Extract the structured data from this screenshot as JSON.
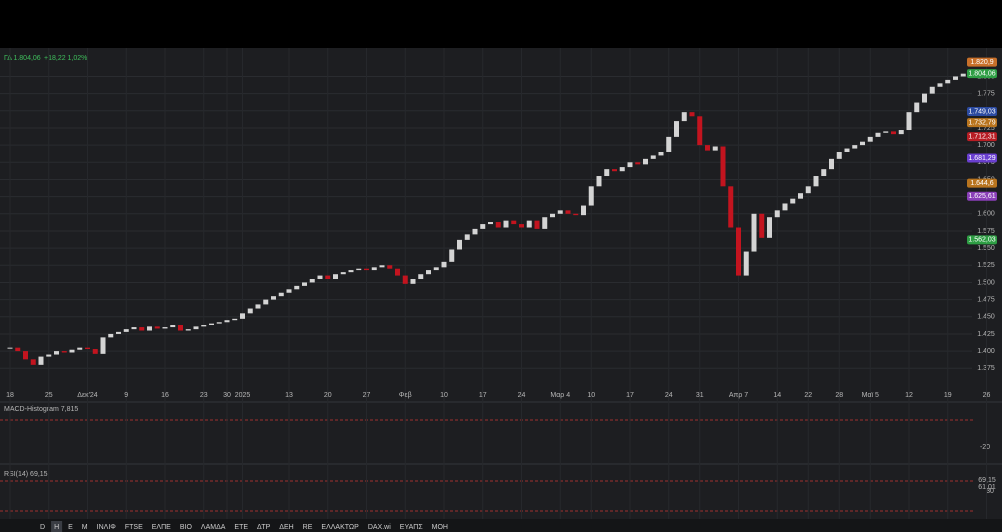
{
  "chart_data": {
    "type": "candlestick",
    "header": {
      "symbol": "ΓΔ 1.804,06",
      "change": "+18,22 1,02%"
    },
    "categories": [
      "18",
      null,
      null,
      null,
      null,
      "25",
      null,
      null,
      null,
      null,
      "Δεκ'24",
      null,
      null,
      null,
      null,
      "9",
      null,
      null,
      null,
      null,
      "16",
      null,
      null,
      null,
      null,
      "23",
      null,
      null,
      "30",
      null,
      "2025",
      null,
      null,
      null,
      null,
      null,
      "13",
      null,
      null,
      null,
      null,
      "20",
      null,
      null,
      null,
      null,
      "27",
      null,
      null,
      null,
      null,
      "Φεβ",
      null,
      null,
      null,
      null,
      "10",
      null,
      null,
      null,
      null,
      "17",
      null,
      null,
      null,
      null,
      "24",
      null,
      null,
      null,
      null,
      "Μαρ 4",
      null,
      null,
      null,
      "10",
      null,
      null,
      null,
      null,
      "17",
      null,
      null,
      null,
      null,
      "24",
      null,
      null,
      null,
      "31",
      null,
      null,
      null,
      null,
      "Απρ 7",
      null,
      null,
      null,
      null,
      "14",
      null,
      null,
      null,
      "22",
      null,
      null,
      null,
      "28",
      null,
      null,
      null,
      "Μαϊ 5",
      null,
      null,
      null,
      null,
      "12",
      null,
      null,
      null,
      null,
      "19",
      null,
      null,
      null,
      null,
      "26"
    ],
    "close": [
      1405,
      1400,
      1388,
      1380,
      1392,
      1395,
      1400,
      1398,
      1402,
      1405,
      1403,
      1396,
      1420,
      1425,
      1428,
      1432,
      1435,
      1430,
      1436,
      1433,
      1435,
      1438,
      1430,
      1432,
      1436,
      1438,
      1440,
      1442,
      1445,
      1447,
      1455,
      1462,
      1468,
      1475,
      1480,
      1485,
      1490,
      1495,
      1500,
      1505,
      1510,
      1505,
      1512,
      1515,
      1518,
      1520,
      1518,
      1522,
      1525,
      1520,
      1510,
      1498,
      1505,
      1512,
      1518,
      1522,
      1530,
      1548,
      1562,
      1570,
      1578,
      1585,
      1588,
      1580,
      1590,
      1585,
      1580,
      1590,
      1578,
      1595,
      1600,
      1605,
      1600,
      1598,
      1612,
      1640,
      1655,
      1665,
      1662,
      1668,
      1675,
      1672,
      1680,
      1685,
      1690,
      1712,
      1735,
      1748,
      1742,
      1700,
      1692,
      1698,
      1640,
      1580,
      1510,
      1545,
      1600,
      1565,
      1595,
      1605,
      1615,
      1622,
      1630,
      1640,
      1655,
      1665,
      1680,
      1690,
      1695,
      1700,
      1705,
      1712,
      1718,
      1720,
      1716,
      1722,
      1748,
      1762,
      1775,
      1785,
      1790,
      1795,
      1800,
      1804.06,
      null,
      null,
      null
    ],
    "up_color": "#d4d4d4",
    "down_color": "#c3141f",
    "ylim": [
      1355,
      1840
    ],
    "yticks": [
      {
        "value": 1375,
        "label": "1.375"
      },
      {
        "value": 1400,
        "label": "1.400"
      },
      {
        "value": 1425,
        "label": "1.425"
      },
      {
        "value": 1450,
        "label": "1.450"
      },
      {
        "value": 1475,
        "label": "1.475"
      },
      {
        "value": 1500,
        "label": "1.500"
      },
      {
        "value": 1525,
        "label": "1.525"
      },
      {
        "value": 1550,
        "label": "1.550"
      },
      {
        "value": 1575,
        "label": "1.575"
      },
      {
        "value": 1600,
        "label": "1.600"
      },
      {
        "value": 1625,
        "label": "1.625"
      },
      {
        "value": 1650,
        "label": "1.650"
      },
      {
        "value": 1675,
        "label": "1.675"
      },
      {
        "value": 1700,
        "label": "1.700"
      },
      {
        "value": 1725,
        "label": "1.725"
      },
      {
        "value": 1750,
        "label": "1.750"
      },
      {
        "value": 1775,
        "label": "1.775"
      },
      {
        "value": 1800,
        "label": "1.800"
      }
    ],
    "grid": true,
    "price_badges": [
      {
        "value": 1820.9,
        "label": "1.820,9",
        "color": "#c8702a"
      },
      {
        "value": 1804.06,
        "label": "1.804,06",
        "color": "#2e9e44"
      },
      {
        "value": 1749.03,
        "label": "1.749,03",
        "color": "#2b4aa0"
      },
      {
        "value": 1732.79,
        "label": "1.732,79",
        "color": "#b8741e"
      },
      {
        "value": 1712.31,
        "label": "1.712,31",
        "color": "#b81d24"
      },
      {
        "value": 1681.29,
        "label": "1.681,29",
        "color": "#6a3fd0"
      },
      {
        "value": 1644.6,
        "label": "1.644,6",
        "color": "#b8741e"
      },
      {
        "value": 1625.61,
        "label": "1.625,61",
        "color": "#8a3fb8"
      },
      {
        "value": 1562.03,
        "label": "1.562,03",
        "color": "#2e9e44"
      }
    ],
    "macd_pane": {
      "title": "MACD-Histogram 7,815",
      "axis_label": "-20"
    },
    "rsi_pane": {
      "title": "RSI(14) 69,15",
      "labels": [
        "69,15",
        "61,01",
        "30"
      ]
    },
    "toolbar": [
      "D",
      "H",
      "Ε",
      "Μ",
      "ΙΝΛΙΦ",
      "FTSE",
      "ΕΛΠΕ",
      "ΒΙΟ",
      "ΛΑΜΔΑ",
      "ΕΤΕ",
      "ΔΤΡ",
      "ΔΕΗ",
      "RE",
      "ΕΛΛΑΚΤΩΡ",
      "DAX.wi",
      "ΕΥΑΠΣ",
      "ΜΟΗ"
    ]
  }
}
